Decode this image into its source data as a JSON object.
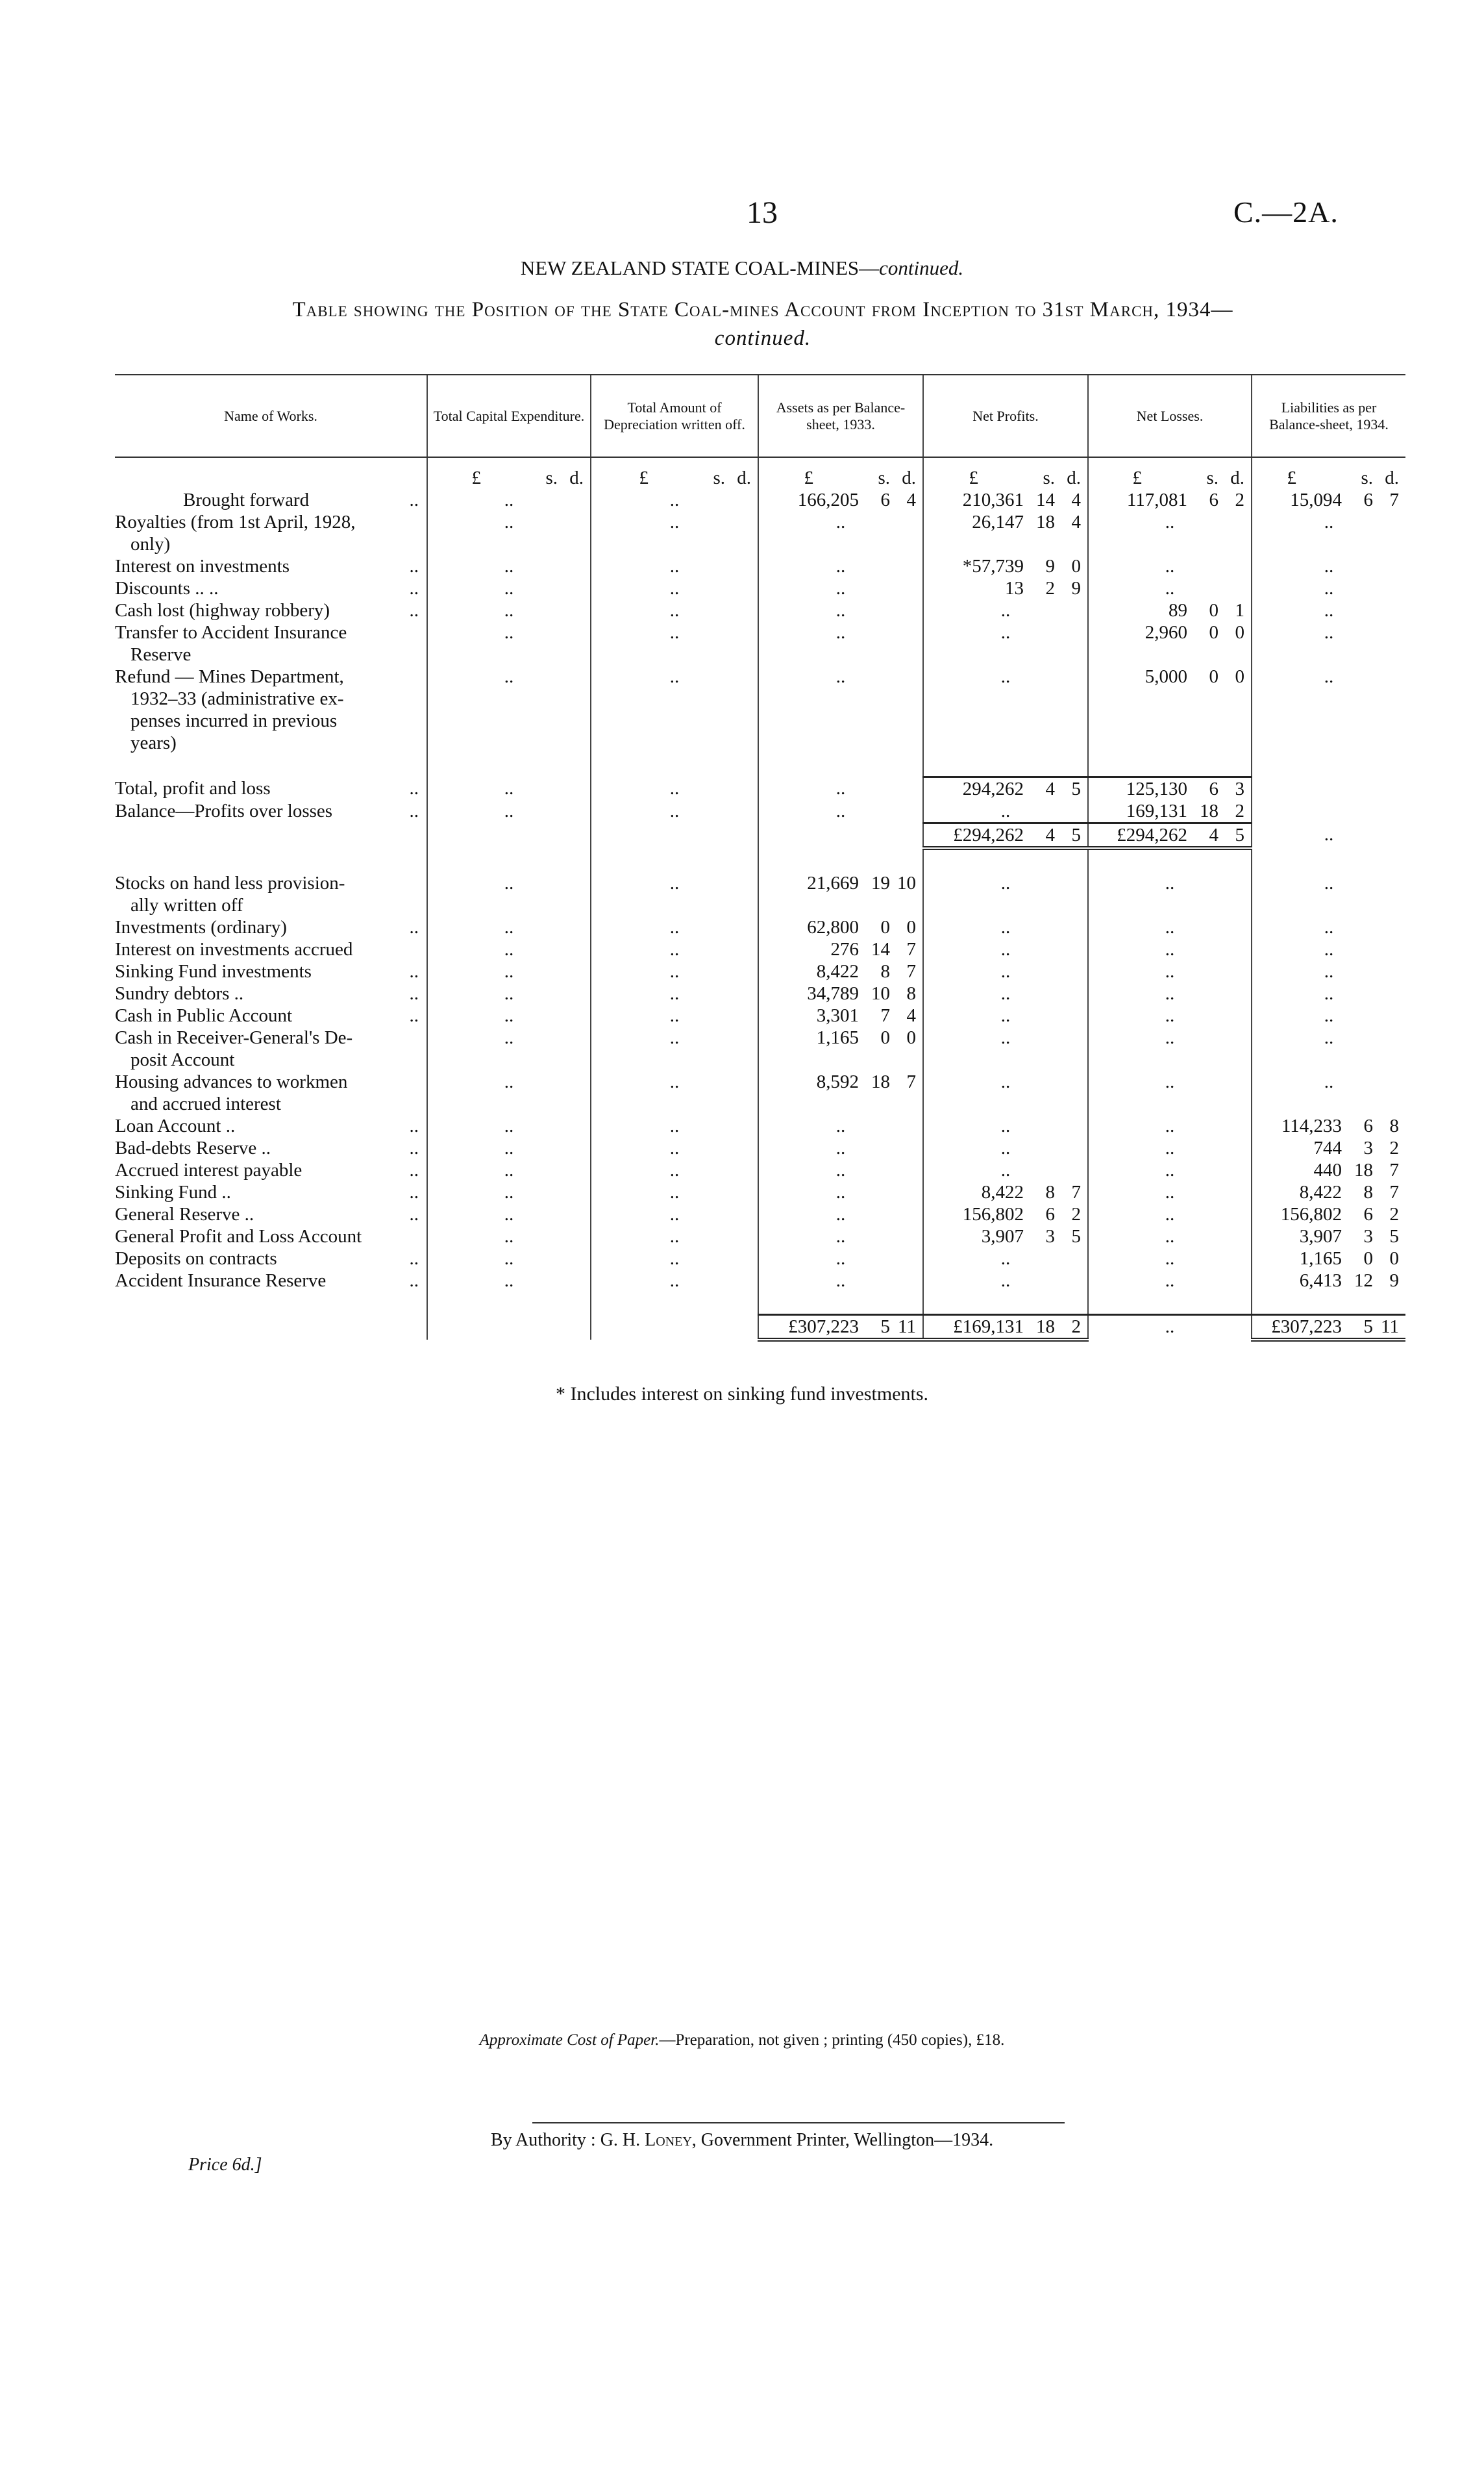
{
  "page_number": "13",
  "doc_code": "C.—2A.",
  "heading": {
    "main": "NEW ZEALAND STATE COAL-MINES—",
    "italic": "continued."
  },
  "subtitle": {
    "line1": "Table showing the Position of the State Coal-mines Account from Inception to 31st March, 1934—",
    "line2": "continued."
  },
  "table": {
    "headers": [
      "Name of Works.",
      "Total Capital Expenditure.",
      "Total Amount of Depreciation written off.",
      "Assets as per Balance-sheet, 1933.",
      "Net Profits.",
      "Net Losses.",
      "Liabilities as per Balance-sheet, 1934."
    ],
    "units": {
      "pound": "£",
      "shilling": "s.",
      "pence": "d."
    },
    "rows": [
      {
        "label": [
          "Brought forward"
        ],
        "leader": "..",
        "center": true,
        "cells": [
          "..",
          "..",
          [
            "166,205",
            "6",
            "4"
          ],
          [
            "210,361",
            "14",
            "4"
          ],
          [
            "117,081",
            "6",
            "2"
          ],
          [
            "15,094",
            "6",
            "7"
          ]
        ]
      },
      {
        "label": [
          "Royalties (from 1st April, 1928,",
          "only)"
        ],
        "leader": "",
        "cells": [
          "..",
          "..",
          "..",
          [
            "26,147",
            "18",
            "4"
          ],
          "..",
          ".."
        ]
      },
      {
        "label": [
          "Interest on investments"
        ],
        "leader": "..",
        "cells": [
          "..",
          "..",
          "..",
          [
            "*57,739",
            "9",
            "0"
          ],
          "..",
          ".."
        ]
      },
      {
        "label": [
          "Discounts ..      .."
        ],
        "leader": "..",
        "cells": [
          "..",
          "..",
          "..",
          [
            "13",
            "2",
            "9"
          ],
          "..",
          ".."
        ]
      },
      {
        "label": [
          "Cash lost (highway robbery)"
        ],
        "leader": "..",
        "cells": [
          "..",
          "..",
          "..",
          "..",
          [
            "89",
            "0",
            "1"
          ],
          ".."
        ]
      },
      {
        "label": [
          "Transfer to Accident Insurance",
          "Reserve"
        ],
        "leader": "",
        "cells": [
          "..",
          "..",
          "..",
          "..",
          [
            "2,960",
            "0",
            "0"
          ],
          ".."
        ]
      },
      {
        "label": [
          "Refund — Mines Department,",
          "1932–33 (administrative ex-",
          "penses incurred in previous",
          "years)"
        ],
        "leader": "",
        "cells": [
          "..",
          "..",
          "..",
          "..",
          [
            "5,000",
            "0",
            "0"
          ],
          ".."
        ]
      },
      {
        "spacer": true
      },
      {
        "label": [
          "Total, profit and loss"
        ],
        "leader": "..",
        "rule_top": [
          3,
          4
        ],
        "cells": [
          "..",
          "..",
          "..",
          [
            "294,262",
            "4",
            "5"
          ],
          [
            "125,130",
            "6",
            "3"
          ],
          ""
        ]
      },
      {
        "label": [
          "Balance—Profits over losses"
        ],
        "leader": "..",
        "cells": [
          "..",
          "..",
          "..",
          "..",
          [
            "169,131",
            "18",
            "2"
          ],
          ""
        ]
      },
      {
        "label": [
          ""
        ],
        "leader": "",
        "rule_top": [
          3,
          4
        ],
        "rule_dbl": [
          3,
          4
        ],
        "cells": [
          "",
          "",
          "",
          [
            "£294,262",
            "4",
            "5"
          ],
          [
            "£294,262",
            "4",
            "5"
          ],
          ".."
        ]
      },
      {
        "spacer": true
      },
      {
        "label": [
          "Stocks on hand less provision-",
          "ally written off"
        ],
        "leader": "",
        "cells": [
          "..",
          "..",
          [
            "21,669",
            "19",
            "10"
          ],
          "..",
          "..",
          ".."
        ]
      },
      {
        "label": [
          "Investments (ordinary)"
        ],
        "leader": "..",
        "cells": [
          "..",
          "..",
          [
            "62,800",
            "0",
            "0"
          ],
          "..",
          "..",
          ".."
        ]
      },
      {
        "label": [
          "Interest on investments accrued"
        ],
        "leader": "",
        "cells": [
          "..",
          "..",
          [
            "276",
            "14",
            "7"
          ],
          "..",
          "..",
          ".."
        ]
      },
      {
        "label": [
          "Sinking Fund investments"
        ],
        "leader": "..",
        "cells": [
          "..",
          "..",
          [
            "8,422",
            "8",
            "7"
          ],
          "..",
          "..",
          ".."
        ]
      },
      {
        "label": [
          "Sundry debtors     .."
        ],
        "leader": "..",
        "cells": [
          "..",
          "..",
          [
            "34,789",
            "10",
            "8"
          ],
          "..",
          "..",
          ".."
        ]
      },
      {
        "label": [
          "Cash in Public Account"
        ],
        "leader": "..",
        "cells": [
          "..",
          "..",
          [
            "3,301",
            "7",
            "4"
          ],
          "..",
          "..",
          ".."
        ]
      },
      {
        "label": [
          "Cash in Receiver-General's De-",
          "posit Account"
        ],
        "leader": "",
        "cells": [
          "..",
          "..",
          [
            "1,165",
            "0",
            "0"
          ],
          "..",
          "..",
          ".."
        ]
      },
      {
        "label": [
          "Housing advances to workmen",
          "and accrued interest"
        ],
        "leader": "",
        "cells": [
          "..",
          "..",
          [
            "8,592",
            "18",
            "7"
          ],
          "..",
          "..",
          ".."
        ]
      },
      {
        "label": [
          "Loan Account     .."
        ],
        "leader": "..",
        "cells": [
          "..",
          "..",
          "..",
          "..",
          "..",
          [
            "114,233",
            "6",
            "8"
          ]
        ]
      },
      {
        "label": [
          "Bad-debts Reserve .."
        ],
        "leader": "..",
        "cells": [
          "..",
          "..",
          "..",
          "..",
          "..",
          [
            "744",
            "3",
            "2"
          ]
        ]
      },
      {
        "label": [
          "Accrued interest payable"
        ],
        "leader": "..",
        "cells": [
          "..",
          "..",
          "..",
          "..",
          "..",
          [
            "440",
            "18",
            "7"
          ]
        ]
      },
      {
        "label": [
          "Sinking Fund     .."
        ],
        "leader": "..",
        "cells": [
          "..",
          "..",
          "..",
          [
            "8,422",
            "8",
            "7"
          ],
          "..",
          [
            "8,422",
            "8",
            "7"
          ]
        ]
      },
      {
        "label": [
          "General Reserve     .."
        ],
        "leader": "..",
        "cells": [
          "..",
          "..",
          "..",
          [
            "156,802",
            "6",
            "2"
          ],
          "..",
          [
            "156,802",
            "6",
            "2"
          ]
        ]
      },
      {
        "label": [
          "General Profit and Loss Account"
        ],
        "leader": "",
        "cells": [
          "..",
          "..",
          "..",
          [
            "3,907",
            "3",
            "5"
          ],
          "..",
          [
            "3,907",
            "3",
            "5"
          ]
        ]
      },
      {
        "label": [
          "Deposits on contracts"
        ],
        "leader": "..",
        "cells": [
          "..",
          "..",
          "..",
          "..",
          "..",
          [
            "1,165",
            "0",
            "0"
          ]
        ]
      },
      {
        "label": [
          "Accident Insurance Reserve"
        ],
        "leader": "..",
        "cells": [
          "..",
          "..",
          "..",
          "..",
          "..",
          [
            "6,413",
            "12",
            "9"
          ]
        ]
      },
      {
        "spacer": true
      },
      {
        "label": [
          ""
        ],
        "leader": "",
        "rule_top": [
          2,
          3,
          4,
          5
        ],
        "rule_dbl": [
          2,
          3,
          5
        ],
        "cells": [
          "",
          "",
          [
            "£307,223",
            "5",
            "11"
          ],
          [
            "£169,131",
            "18",
            "2"
          ],
          "..",
          [
            "£307,223",
            "5",
            "11"
          ]
        ]
      }
    ]
  },
  "footnote": "* Includes interest on sinking fund investments.",
  "cost": {
    "italic": "Approximate Cost of Paper.",
    "text": "—Preparation, not given ; printing (450 copies), £18."
  },
  "authority": {
    "prefix": "By Authority : ",
    "name": "G. H. Loney",
    "suffix": ", Government Printer, Wellington—1934."
  },
  "price": "Price 6d.]"
}
